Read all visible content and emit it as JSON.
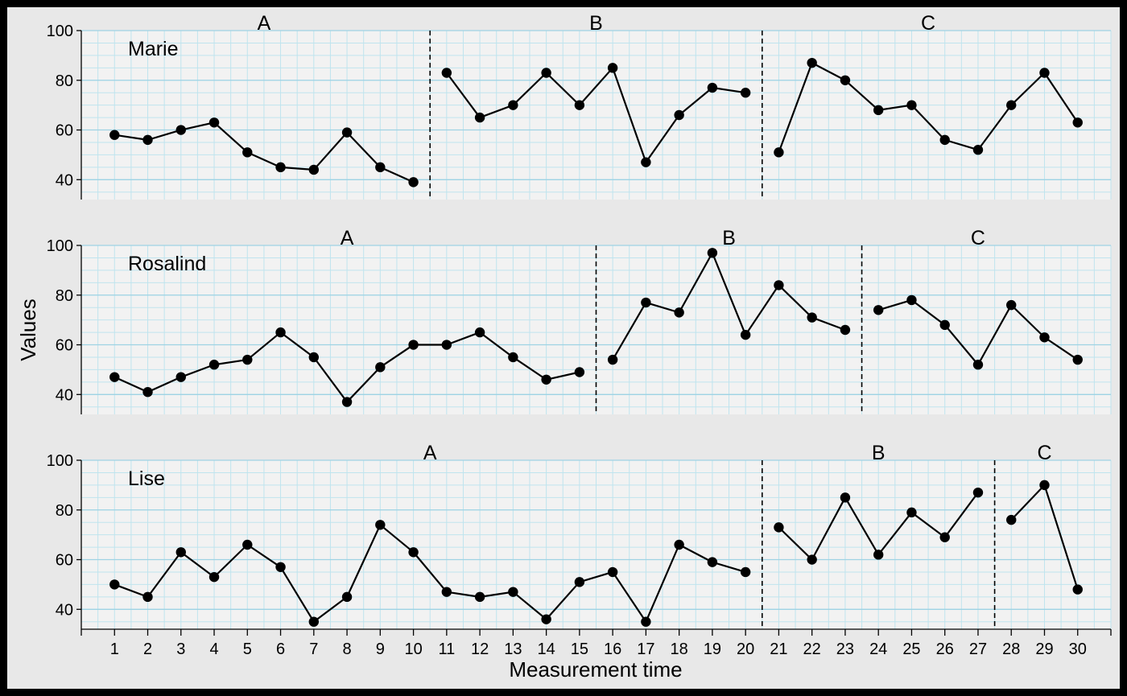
{
  "chart_data": {
    "type": "line",
    "xlabel": "Measurement time",
    "ylabel": "Values",
    "x_ticks": [
      1,
      2,
      3,
      4,
      5,
      6,
      7,
      8,
      9,
      10,
      11,
      12,
      13,
      14,
      15,
      16,
      17,
      18,
      19,
      20,
      21,
      22,
      23,
      24,
      25,
      26,
      27,
      28,
      29,
      30
    ],
    "y_ticks": [
      40,
      60,
      80,
      100
    ],
    "xlim": [
      0,
      31
    ],
    "ylim": [
      32,
      100
    ],
    "grid": true,
    "panels": [
      {
        "name": "Marie",
        "phases": [
          {
            "label": "A",
            "x": [
              1,
              2,
              3,
              4,
              5,
              6,
              7,
              8,
              9,
              10
            ],
            "values": [
              58,
              56,
              60,
              63,
              51,
              45,
              44,
              59,
              45,
              39
            ]
          },
          {
            "label": "B",
            "x": [
              11,
              12,
              13,
              14,
              15,
              16,
              17,
              18,
              19,
              20
            ],
            "values": [
              83,
              65,
              70,
              83,
              70,
              85,
              47,
              66,
              77,
              75
            ]
          },
          {
            "label": "C",
            "x": [
              21,
              22,
              23,
              24,
              25,
              26,
              27,
              28,
              29,
              30
            ],
            "values": [
              51,
              87,
              80,
              68,
              70,
              56,
              52,
              70,
              83,
              63
            ]
          }
        ],
        "phase_changes": [
          10.5,
          20.5
        ]
      },
      {
        "name": "Rosalind",
        "phases": [
          {
            "label": "A",
            "x": [
              1,
              2,
              3,
              4,
              5,
              6,
              7,
              8,
              9,
              10,
              11,
              12,
              13,
              14,
              15
            ],
            "values": [
              47,
              41,
              47,
              52,
              54,
              65,
              55,
              37,
              51,
              60,
              60,
              65,
              55,
              46,
              49
            ]
          },
          {
            "label": "B",
            "x": [
              16,
              17,
              18,
              19,
              20,
              21,
              22,
              23
            ],
            "values": [
              54,
              77,
              73,
              97,
              64,
              84,
              71,
              66
            ]
          },
          {
            "label": "C",
            "x": [
              24,
              25,
              26,
              27,
              28,
              29,
              30
            ],
            "values": [
              74,
              78,
              68,
              52,
              76,
              63,
              54
            ]
          }
        ],
        "phase_changes": [
          15.5,
          23.5
        ]
      },
      {
        "name": "Lise",
        "phases": [
          {
            "label": "A",
            "x": [
              1,
              2,
              3,
              4,
              5,
              6,
              7,
              8,
              9,
              10,
              11,
              12,
              13,
              14,
              15,
              16,
              17,
              18,
              19,
              20
            ],
            "values": [
              50,
              45,
              63,
              53,
              66,
              57,
              35,
              45,
              74,
              63,
              47,
              45,
              47,
              36,
              51,
              55,
              35,
              66,
              59,
              55
            ]
          },
          {
            "label": "B",
            "x": [
              21,
              22,
              23,
              24,
              25,
              26,
              27
            ],
            "values": [
              73,
              60,
              85,
              62,
              79,
              69,
              87
            ]
          },
          {
            "label": "C",
            "x": [
              28,
              29,
              30
            ],
            "values": [
              76,
              90,
              48
            ]
          }
        ],
        "phase_changes": [
          20.5,
          27.5
        ]
      }
    ]
  }
}
